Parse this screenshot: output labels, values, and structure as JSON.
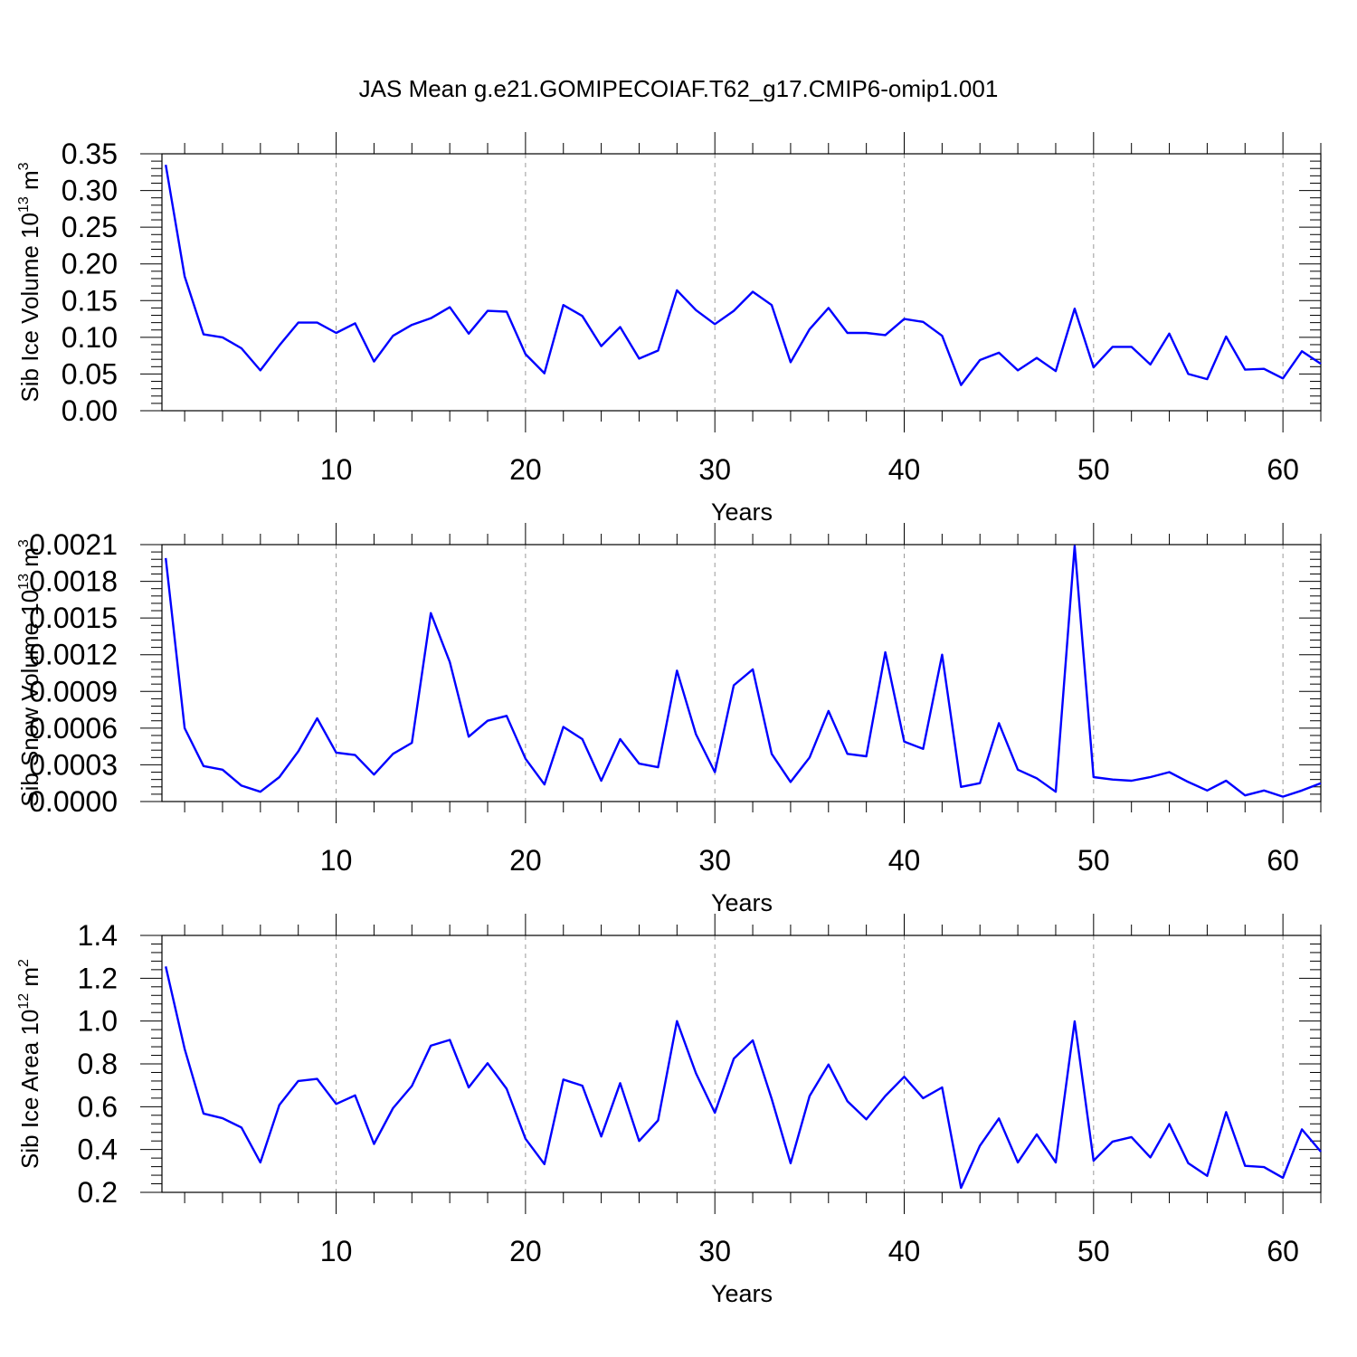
{
  "figure": {
    "title": "JAS Mean g.e21.GOMIPECOIAF.T62_g17.CMIP6-omip1.001"
  },
  "chart_data": [
    {
      "type": "line",
      "xlabel": "Years",
      "ylabel": "Sib Ice Volume 10",
      "ylabel_exp": "13",
      "ylabel_unit": " m",
      "ylabel_unit_exp": "3",
      "xlim": [
        0.8,
        62
      ],
      "ylim": [
        0,
        0.35
      ],
      "xticks": [
        "10",
        "20",
        "30",
        "40",
        "50",
        "60"
      ],
      "yticks": [
        "0.00",
        "0.05",
        "0.10",
        "0.15",
        "0.20",
        "0.25",
        "0.30",
        "0.35"
      ],
      "grid": "vertical dashed",
      "color": "#0000ff",
      "x_start": 1,
      "values": [
        0.335,
        0.183,
        0.104,
        0.1,
        0.085,
        0.055,
        0.089,
        0.12,
        0.12,
        0.106,
        0.119,
        0.067,
        0.102,
        0.117,
        0.126,
        0.141,
        0.105,
        0.136,
        0.135,
        0.077,
        0.051,
        0.144,
        0.129,
        0.088,
        0.114,
        0.071,
        0.082,
        0.164,
        0.137,
        0.118,
        0.136,
        0.162,
        0.144,
        0.066,
        0.111,
        0.14,
        0.106,
        0.106,
        0.103,
        0.125,
        0.121,
        0.102,
        0.035,
        0.069,
        0.079,
        0.055,
        0.072,
        0.054,
        0.139,
        0.059,
        0.087,
        0.087,
        0.063,
        0.105,
        0.05,
        0.043,
        0.101,
        0.056,
        0.057,
        0.044,
        0.081,
        0.064
      ]
    },
    {
      "type": "line",
      "xlabel": "Years",
      "ylabel": "Sib Snow Volume 10",
      "ylabel_exp": "13",
      "ylabel_unit": " m",
      "ylabel_unit_exp": "3",
      "xlim": [
        0.8,
        62
      ],
      "ylim": [
        0,
        0.0021
      ],
      "xticks": [
        "10",
        "20",
        "30",
        "40",
        "50",
        "60"
      ],
      "yticks": [
        "0.0000",
        "0.0003",
        "0.0006",
        "0.0009",
        "0.0012",
        "0.0015",
        "0.0018",
        "0.0021"
      ],
      "grid": "vertical dashed",
      "color": "#0000ff",
      "x_start": 1,
      "values": [
        0.00199,
        0.0006,
        0.00029,
        0.00026,
        0.00013,
        8e-05,
        0.0002,
        0.00041,
        0.00068,
        0.0004,
        0.00038,
        0.00022,
        0.00039,
        0.00048,
        0.00154,
        0.00114,
        0.00053,
        0.00066,
        0.0007,
        0.00035,
        0.00014,
        0.00061,
        0.00051,
        0.00017,
        0.00051,
        0.00031,
        0.00028,
        0.00107,
        0.00055,
        0.00024,
        0.00095,
        0.00108,
        0.00039,
        0.00016,
        0.00036,
        0.00074,
        0.00039,
        0.00037,
        0.00122,
        0.00049,
        0.00043,
        0.0012,
        0.00012,
        0.00015,
        0.00064,
        0.00026,
        0.00019,
        8e-05,
        0.00209,
        0.0002,
        0.00018,
        0.00017,
        0.0002,
        0.00024,
        0.00016,
        9e-05,
        0.00017,
        5e-05,
        9e-05,
        4e-05,
        9e-05,
        0.00015
      ]
    },
    {
      "type": "line",
      "xlabel": "Years",
      "ylabel": "Sib Ice Area 10",
      "ylabel_exp": "12",
      "ylabel_unit": " m",
      "ylabel_unit_exp": "2",
      "xlim": [
        0.8,
        62
      ],
      "ylim": [
        0.2,
        1.4
      ],
      "xticks": [
        "10",
        "20",
        "30",
        "40",
        "50",
        "60"
      ],
      "yticks": [
        "0.2",
        "0.4",
        "0.6",
        "0.8",
        "1.0",
        "1.2",
        "1.4"
      ],
      "grid": "vertical dashed",
      "color": "#0000ff",
      "x_start": 1,
      "values": [
        1.255,
        0.87,
        0.568,
        0.546,
        0.503,
        0.34,
        0.608,
        0.72,
        0.73,
        0.613,
        0.653,
        0.426,
        0.593,
        0.697,
        0.885,
        0.912,
        0.69,
        0.803,
        0.684,
        0.45,
        0.332,
        0.727,
        0.698,
        0.461,
        0.71,
        0.44,
        0.536,
        1.0,
        0.756,
        0.572,
        0.824,
        0.91,
        0.637,
        0.336,
        0.65,
        0.797,
        0.626,
        0.541,
        0.65,
        0.74,
        0.64,
        0.69,
        0.221,
        0.418,
        0.545,
        0.34,
        0.471,
        0.34,
        0.999,
        0.348,
        0.437,
        0.458,
        0.363,
        0.519,
        0.336,
        0.277,
        0.575,
        0.324,
        0.318,
        0.268,
        0.494,
        0.39
      ]
    }
  ]
}
